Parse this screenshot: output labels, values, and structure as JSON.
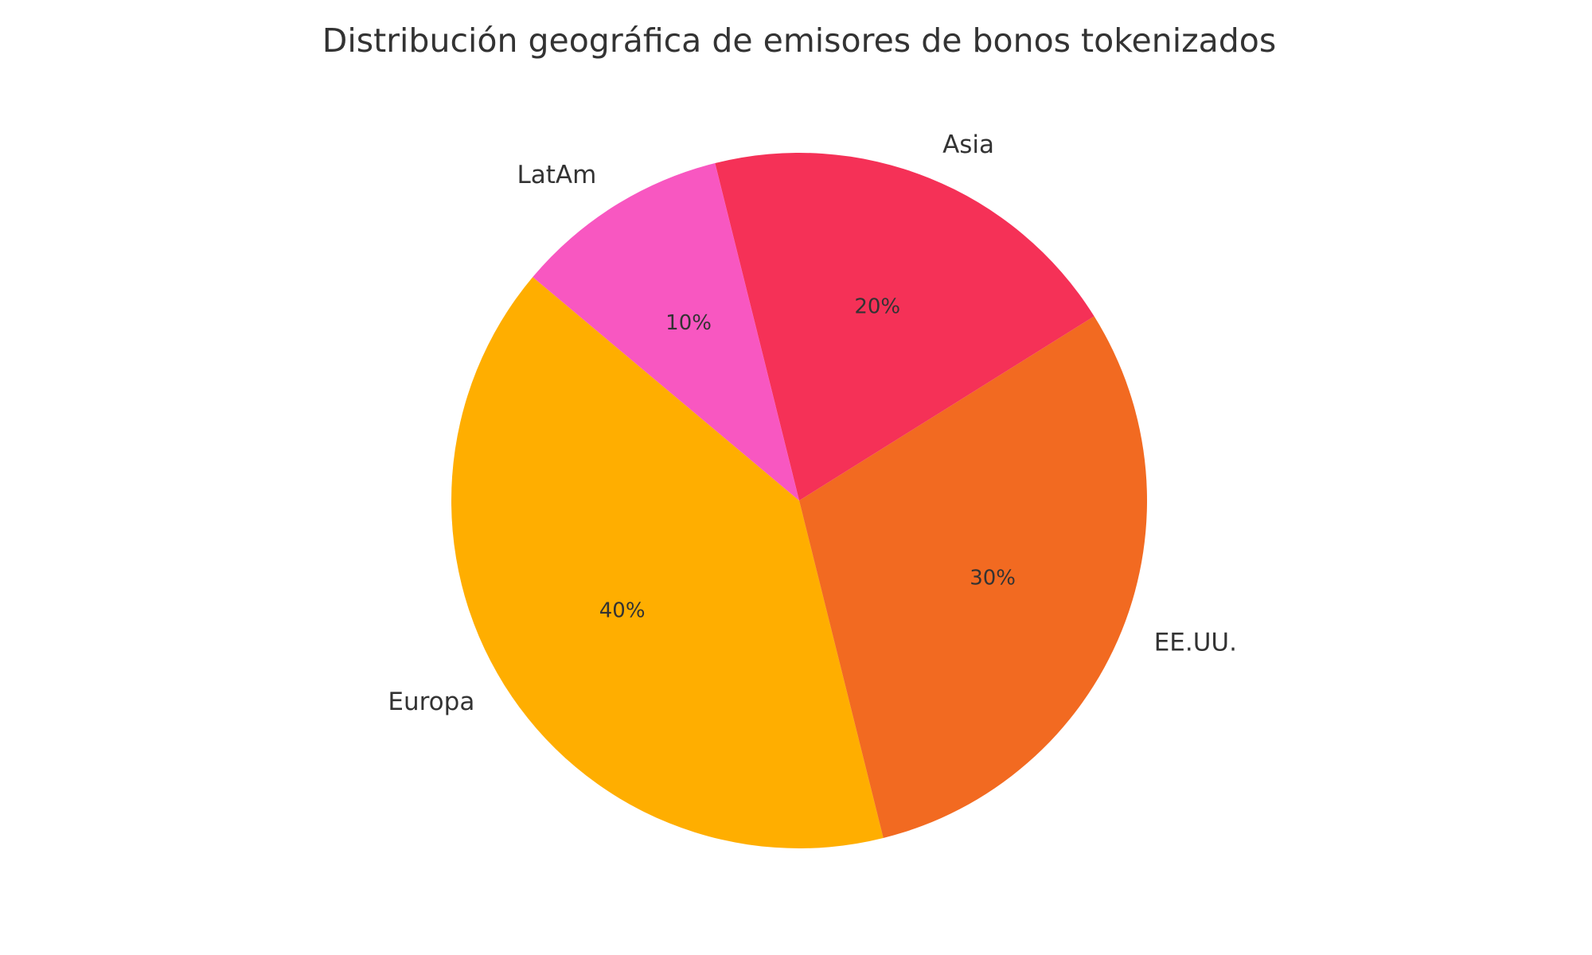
{
  "chart_data": {
    "type": "pie",
    "title": "Distribución geográfica de emisores de bonos tokenizados",
    "slices": [
      {
        "label": "Europa",
        "value": 40,
        "pct_label": "40%",
        "color": "#FFAE00"
      },
      {
        "label": "EE.UU.",
        "value": 30,
        "pct_label": "30%",
        "color": "#F26A21"
      },
      {
        "label": "Asia",
        "value": 20,
        "pct_label": "20%",
        "color": "#F53157"
      },
      {
        "label": "LatAm",
        "value": 10,
        "pct_label": "10%",
        "color": "#F857C1"
      }
    ],
    "start_angle_deg": 140,
    "direction": "counterclockwise",
    "legend": "none"
  }
}
